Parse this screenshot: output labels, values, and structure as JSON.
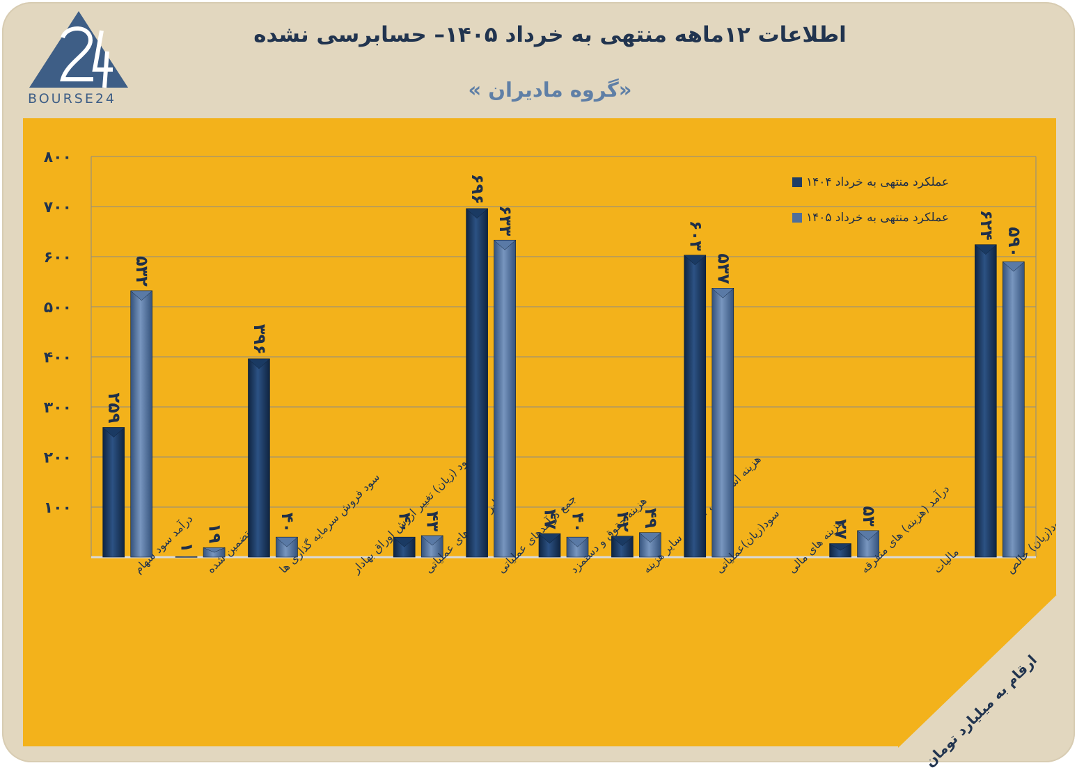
{
  "logo_text": "BOURSE24",
  "header": {
    "title": "اطلاعات ۱۲ماهه منتهی به خرداد ۱۴۰۵– حسابرسی نشده",
    "subtitle": "«گروه مادیران »"
  },
  "note": "ارقام به میلیارد تومان",
  "colors": {
    "background": "#e2d7bf",
    "panel": "#f3b21b",
    "series1": "#1f3d66",
    "series2": "#4f6f9a",
    "text": "#21344f"
  },
  "chart_data": {
    "type": "bar",
    "ylim": [
      0,
      800
    ],
    "yticks": [
      100,
      200,
      300,
      400,
      500,
      600,
      700,
      800
    ],
    "ytick_labels": [
      "۱۰۰",
      "۲۰۰",
      "۳۰۰",
      "۴۰۰",
      "۵۰۰",
      "۶۰۰",
      "۷۰۰",
      "۸۰۰"
    ],
    "grid": true,
    "legend_position": "top-right",
    "categories": [
      "درآمد سود سهام",
      "سود تضمین شده",
      "سود فروش سرمایه گذاری ها",
      "سود (زیان) تغییر ارزش اوراق بهادار",
      "سایر درامدهای عملیاتی",
      "جمع درآمدهای عملیاتی",
      "هزینه حقوق و دستمزد",
      "هزینه استهلاک ، اجاره ، سایر هزینه",
      "سود(زیان)عملیاتی",
      "هزینه های مالی",
      "درآمد (هزینه) های متفرقه",
      "مالیات",
      "سود(زیان) خالص"
    ],
    "series": [
      {
        "name": "عملکرد منتهی به  خرداد ۱۴۰۴",
        "values": [
          259,
          1,
          396,
          null,
          40,
          696,
          47,
          42,
          603,
          null,
          27,
          null,
          624
        ],
        "labels": [
          "۲۵۹",
          "۱",
          "۳۹۶",
          "",
          "۴۰",
          "۶۹۶",
          "۴۷",
          "۴۲",
          "۶۰۳",
          "",
          "۲۷",
          "",
          "۶۲۴"
        ]
      },
      {
        "name": "عملکرد منتهی به خرداد ۱۴۰۵",
        "values": [
          532,
          19,
          40,
          null,
          43,
          633,
          40,
          49,
          537,
          null,
          53,
          null,
          590
        ],
        "labels": [
          "۵۳۲",
          "۱۹",
          "۴۰",
          "",
          "۴۳",
          "۶۳۳",
          "۴۰",
          "۴۹",
          "۵۳۷",
          "",
          "۵۳",
          "",
          "۵۹۰"
        ]
      }
    ]
  }
}
